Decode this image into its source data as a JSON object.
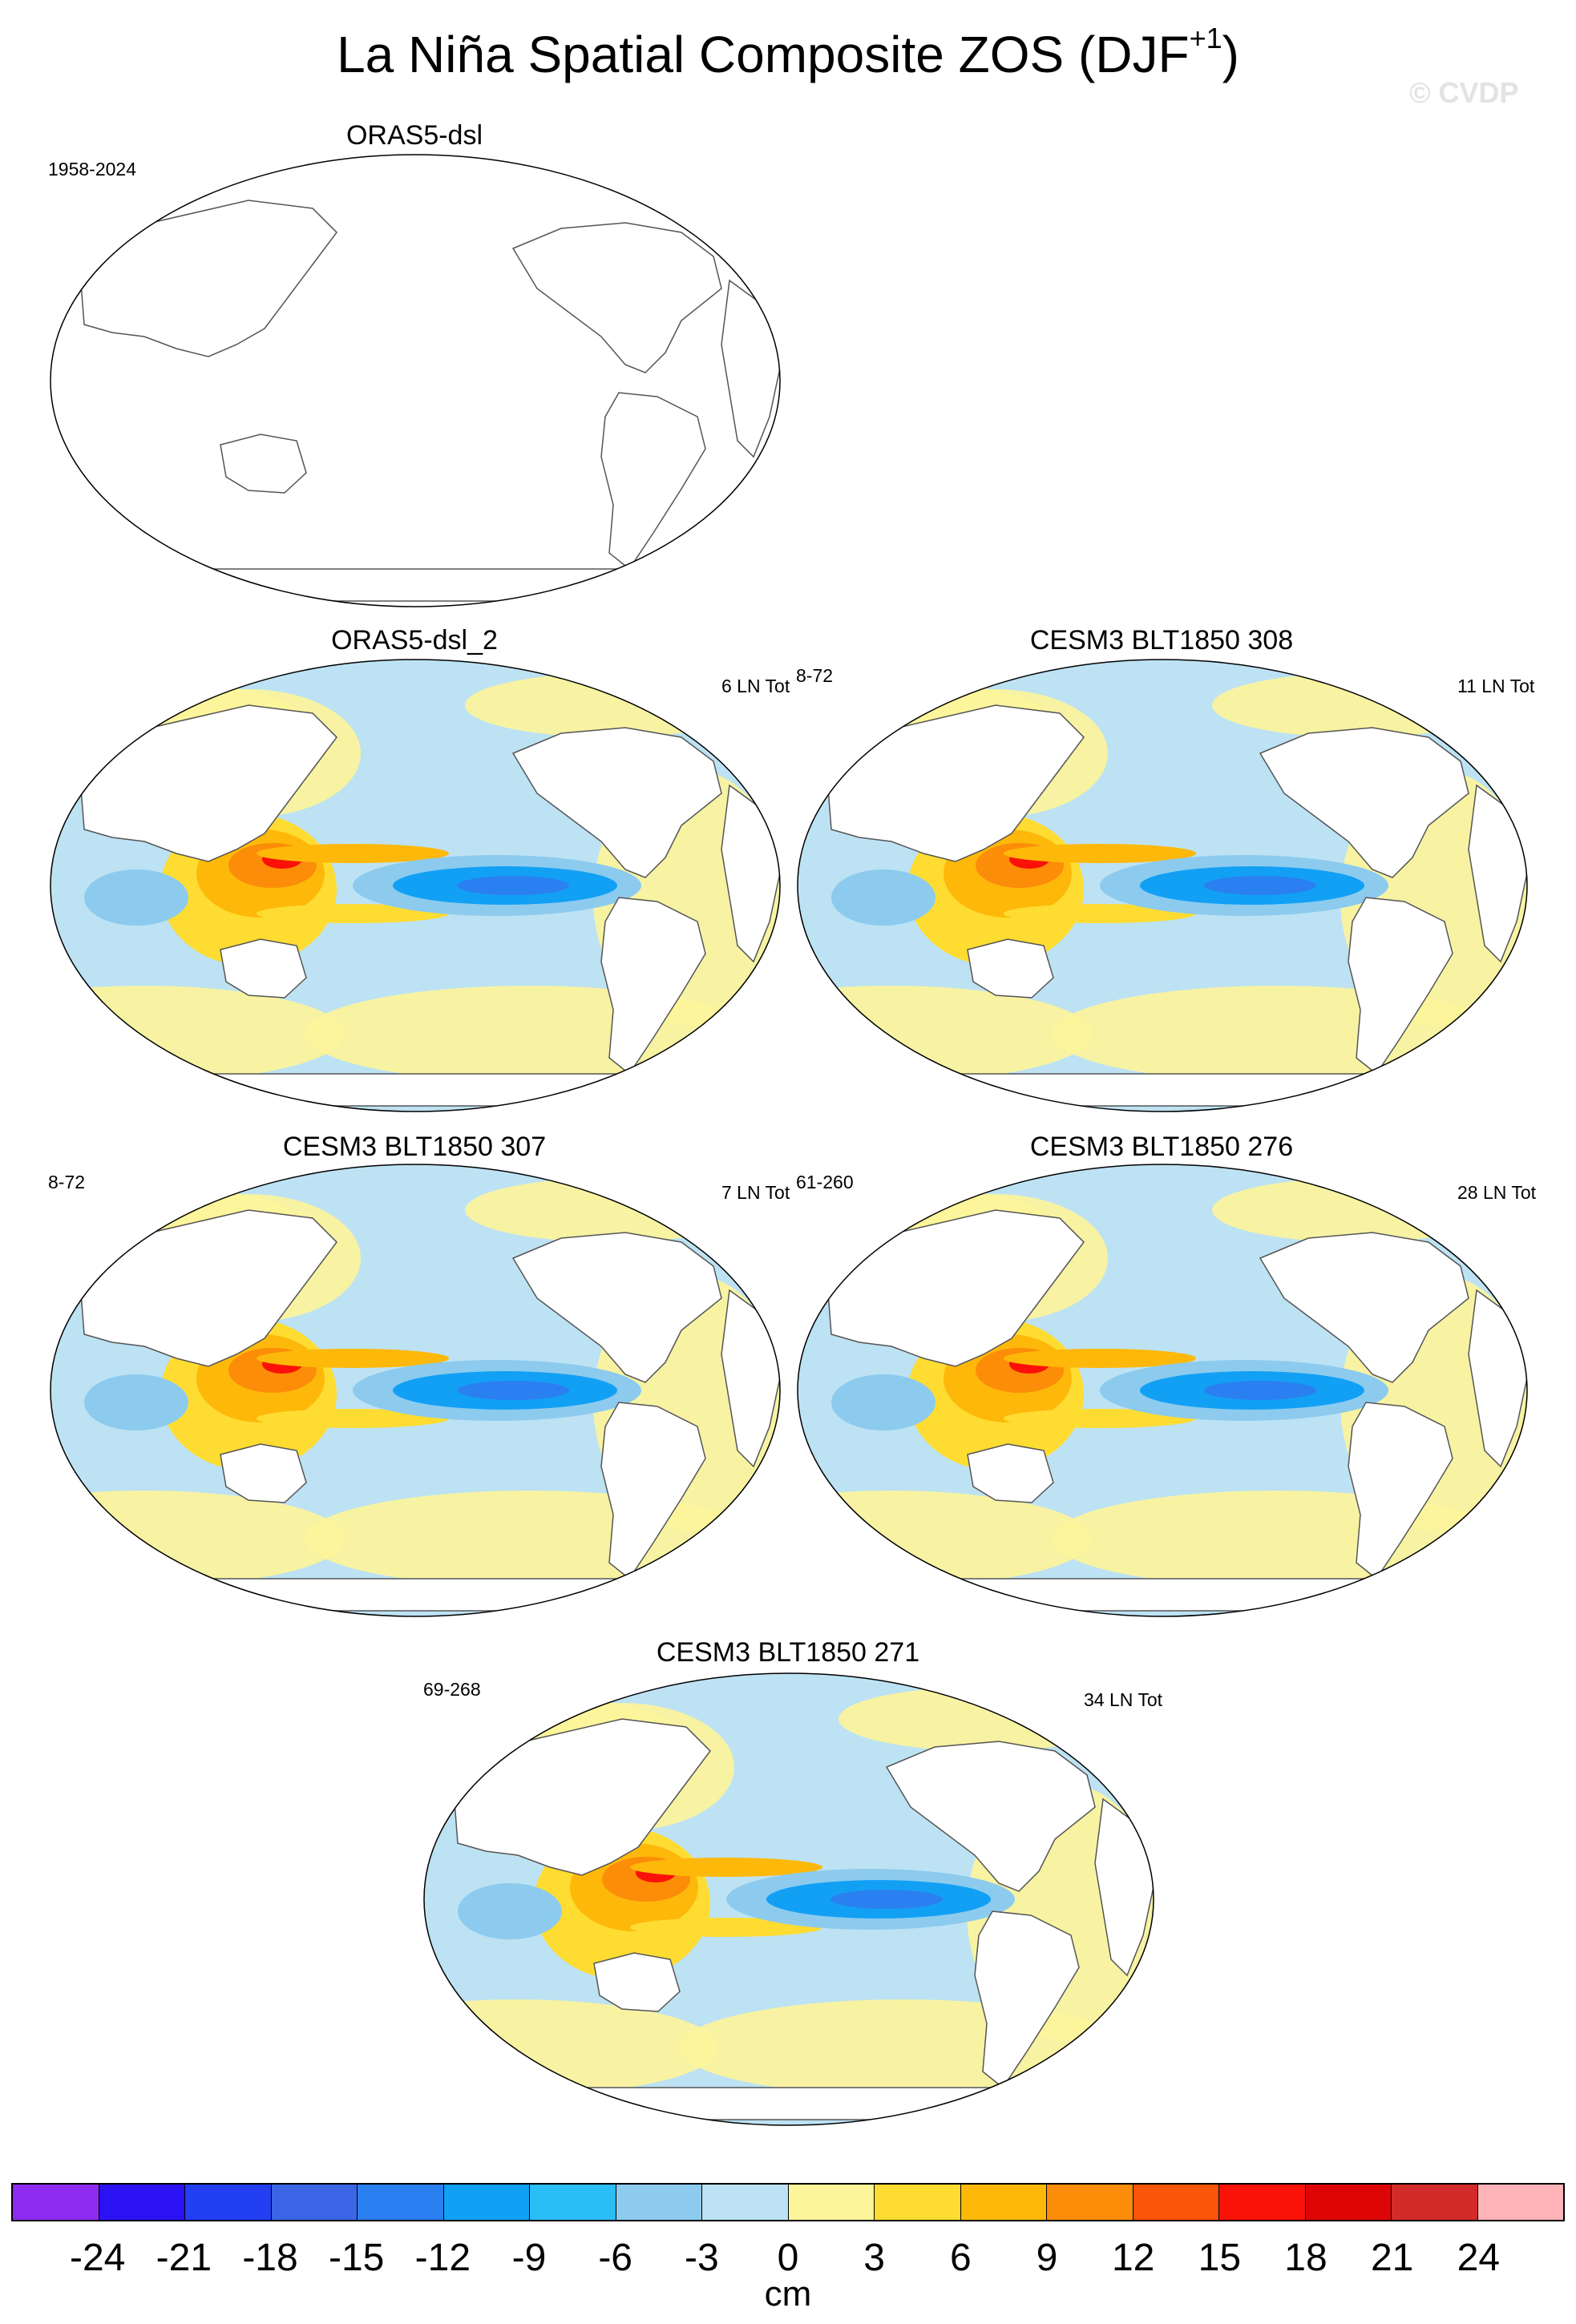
{
  "title": "La Niña Spatial Composite ZOS (DJF",
  "title_sup": "+1",
  "title_close": ")",
  "watermark": "© CVDP",
  "panels": [
    {
      "name": "ORAS5-dsl",
      "left_label": "1958-2024",
      "right_label": "",
      "empty": true
    },
    {
      "name": "ORAS5-dsl_2",
      "left_label": "",
      "right_label": "6 LN Tot",
      "empty": false
    },
    {
      "name": "CESM3 BLT1850 308",
      "left_label": "8-72",
      "right_label": "11 LN Tot",
      "empty": false
    },
    {
      "name": "CESM3 BLT1850 307",
      "left_label": "8-72",
      "right_label": "7 LN Tot",
      "empty": false
    },
    {
      "name": "CESM3 BLT1850 276",
      "left_label": "61-260",
      "right_label": "28 LN Tot",
      "empty": false
    },
    {
      "name": "CESM3 BLT1850 271",
      "left_label": "69-268",
      "right_label": "34 LN Tot",
      "empty": false
    }
  ],
  "colorbar": {
    "units": "cm",
    "ticks": [
      "-24",
      "-21",
      "-18",
      "-15",
      "-12",
      "-9",
      "-6",
      "-3",
      "0",
      "3",
      "6",
      "9",
      "12",
      "15",
      "18",
      "21",
      "24"
    ],
    "colors": [
      "#8f2bf0",
      "#2a12f5",
      "#233ff2",
      "#3a66e6",
      "#2a80f0",
      "#12a0f5",
      "#2bbdf5",
      "#8ccbee",
      "#bde2f3",
      "#fdf59a",
      "#fedc32",
      "#feb80a",
      "#fc8d08",
      "#fb5508",
      "#fa1208",
      "#dd0505",
      "#d32a2a",
      "#fdb3b8"
    ]
  }
}
